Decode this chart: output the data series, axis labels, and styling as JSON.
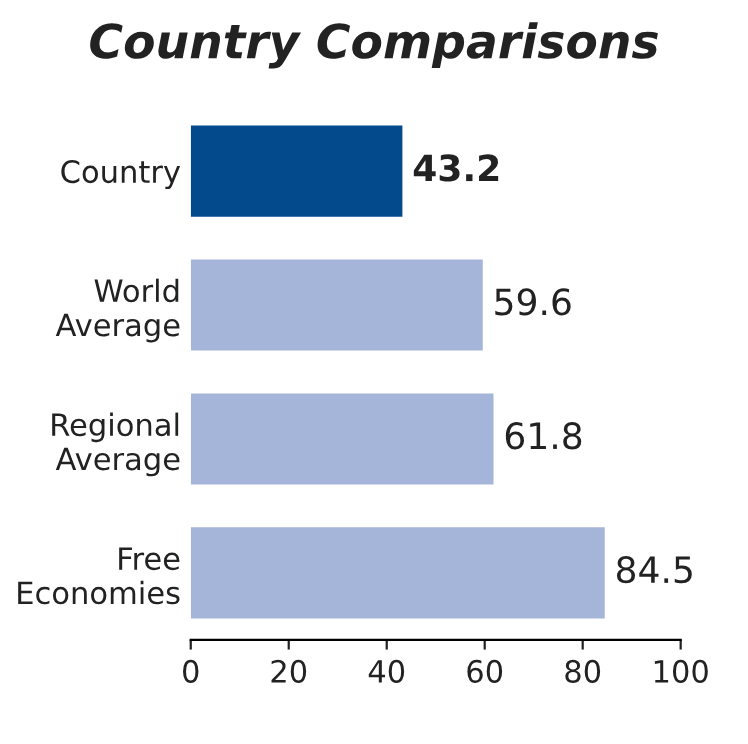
{
  "chart_data": {
    "type": "bar",
    "orientation": "horizontal",
    "title": "Country Comparisons",
    "categories": [
      "Country",
      "World\nAverage",
      "Regional\nAverage",
      "Free\nEconomies"
    ],
    "values": [
      43.2,
      59.6,
      61.8,
      84.5
    ],
    "colors": [
      "#024a8c",
      "#a5b5d9",
      "#a5b5d9",
      "#a5b5d9"
    ],
    "xlim": [
      0,
      100
    ],
    "xticks": [
      0,
      20,
      40,
      60,
      80,
      100
    ],
    "data_labels": true,
    "grid": false,
    "legend": false
  }
}
